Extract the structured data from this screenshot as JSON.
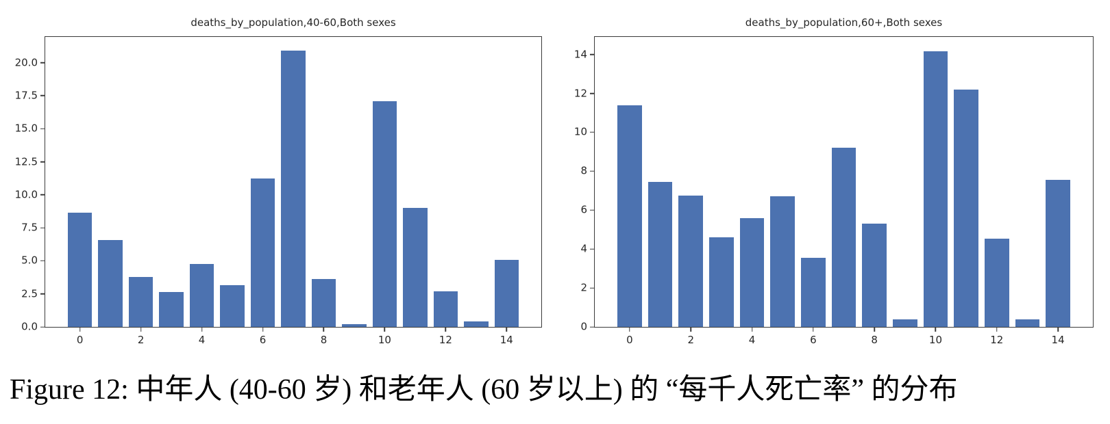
{
  "figure": {
    "caption": "Figure 12: 中年人 (40-60 岁) 和老年人 (60 岁以上) 的 “每千人死亡率” 的分布"
  },
  "colors": {
    "bar": "#4c72b0",
    "spine": "#3a3a3a",
    "text": "#262626"
  },
  "chart_data": [
    {
      "type": "bar",
      "title": "deaths_by_population,40-60,Both sexes",
      "x": [
        0,
        1,
        2,
        3,
        4,
        5,
        6,
        7,
        8,
        9,
        10,
        11,
        12,
        13,
        14
      ],
      "values": [
        8.65,
        6.55,
        3.8,
        2.65,
        4.75,
        3.15,
        11.25,
        20.9,
        3.65,
        0.2,
        17.1,
        9.0,
        2.7,
        0.4,
        5.05
      ],
      "bar_width": 0.8,
      "xlim": [
        -1.14,
        15.14
      ],
      "ylim": [
        0,
        21.95
      ],
      "xticks": [
        0,
        2,
        4,
        6,
        8,
        10,
        12,
        14
      ],
      "xtick_labels": [
        "0",
        "2",
        "4",
        "6",
        "8",
        "10",
        "12",
        "14"
      ],
      "ytick_values": [
        0,
        2.5,
        5,
        7.5,
        10,
        12.5,
        15,
        17.5,
        20
      ],
      "ytick_labels": [
        "0.0",
        "2.5",
        "5.0",
        "7.5",
        "10.0",
        "12.5",
        "15.0",
        "17.5",
        "20.0"
      ],
      "xlabel": "",
      "ylabel": "",
      "grid": false,
      "legend": null
    },
    {
      "type": "bar",
      "title": "deaths_by_population,60+,Both sexes",
      "x": [
        0,
        1,
        2,
        3,
        4,
        5,
        6,
        7,
        8,
        9,
        10,
        11,
        12,
        13,
        14
      ],
      "values": [
        11.4,
        7.45,
        6.75,
        4.6,
        5.6,
        6.7,
        3.55,
        9.2,
        5.3,
        0.4,
        14.15,
        12.2,
        4.55,
        0.38,
        7.55
      ],
      "bar_width": 0.8,
      "xlim": [
        -1.14,
        15.14
      ],
      "ylim": [
        0,
        14.9
      ],
      "xticks": [
        0,
        2,
        4,
        6,
        8,
        10,
        12,
        14
      ],
      "xtick_labels": [
        "0",
        "2",
        "4",
        "6",
        "8",
        "10",
        "12",
        "14"
      ],
      "ytick_values": [
        0,
        2,
        4,
        6,
        8,
        10,
        12,
        14
      ],
      "ytick_labels": [
        "0",
        "2",
        "4",
        "6",
        "8",
        "10",
        "12",
        "14"
      ],
      "xlabel": "",
      "ylabel": "",
      "grid": false,
      "legend": null
    }
  ]
}
